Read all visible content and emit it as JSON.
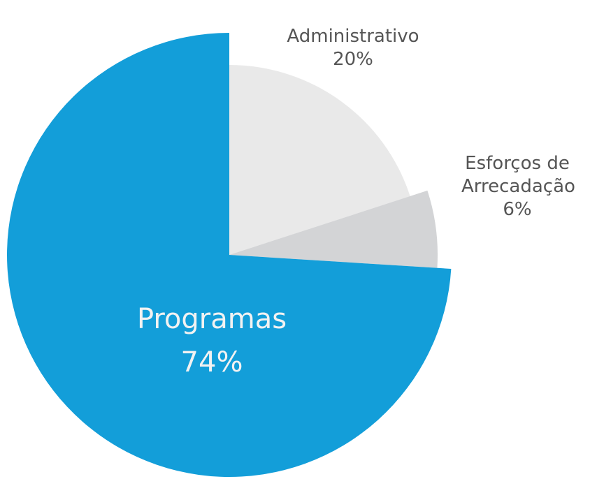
{
  "chart_data": {
    "type": "pie",
    "categories": [
      "Administrativo",
      "Esforços de Arrecadação",
      "Programas"
    ],
    "values": [
      20,
      6,
      74
    ],
    "value_labels": [
      "20%",
      "6%",
      "74%"
    ],
    "colors": [
      "#e9e9e9",
      "#d3d4d6",
      "#139ed9"
    ]
  }
}
